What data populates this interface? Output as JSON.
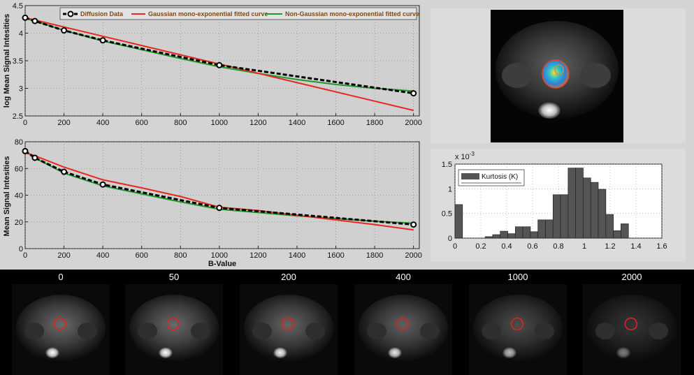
{
  "chart_data": [
    {
      "type": "line",
      "title": "",
      "xlabel": "",
      "ylabel": "log Mean Signal Intesities",
      "xlim": [
        0,
        2030
      ],
      "ylim": [
        2.5,
        4.5
      ],
      "xticks": [
        0,
        200,
        400,
        600,
        800,
        1000,
        1200,
        1400,
        1600,
        1800,
        2000
      ],
      "yticks": [
        2.5,
        3,
        3.5,
        4,
        4.5
      ],
      "grid": "dotted",
      "legend_position": "top",
      "series": [
        {
          "name": "Diffusion Data",
          "color": "#000000",
          "x": [
            0,
            50,
            200,
            400,
            1000,
            2000
          ],
          "y": [
            4.28,
            4.22,
            4.05,
            3.87,
            3.42,
            2.91
          ]
        },
        {
          "name": "Gaussian mono-exponential fitted curve",
          "color": "#e8281e",
          "x": [
            0,
            2000
          ],
          "y": [
            4.28,
            2.6
          ]
        },
        {
          "name": "Non-Gaussian mono-exponential fitted curve",
          "color": "#1e9a28",
          "x": [
            0,
            50,
            200,
            400,
            600,
            800,
            1000,
            1200,
            1400,
            1600,
            1800,
            2000
          ],
          "y": [
            4.27,
            4.22,
            4.05,
            3.86,
            3.7,
            3.54,
            3.39,
            3.27,
            3.16,
            3.07,
            3.0,
            2.95
          ]
        }
      ]
    },
    {
      "type": "line",
      "title": "",
      "xlabel": "B-Value",
      "ylabel": "Mean Signal Intesities",
      "xlim": [
        0,
        2030
      ],
      "ylim": [
        0,
        80
      ],
      "xticks": [
        0,
        200,
        400,
        600,
        800,
        1000,
        1200,
        1400,
        1600,
        1800,
        2000
      ],
      "yticks": [
        0,
        20,
        40,
        60,
        80
      ],
      "grid": "dotted",
      "series": [
        {
          "name": "Diffusion Data",
          "color": "#000000",
          "x": [
            0,
            50,
            200,
            400,
            1000,
            2000
          ],
          "y": [
            73,
            68,
            57.5,
            48,
            30.5,
            18
          ]
        },
        {
          "name": "Gaussian mono-exponential fitted curve",
          "color": "#e8281e",
          "x": [
            0,
            50,
            200,
            400,
            600,
            800,
            1000,
            1200,
            1400,
            1600,
            1800,
            2000
          ],
          "y": [
            72,
            69.5,
            61,
            51.5,
            45.5,
            39,
            31,
            28.5,
            25,
            21.5,
            18,
            14
          ]
        },
        {
          "name": "Non-Gaussian mono-exponential fitted curve",
          "color": "#1e9a28",
          "x": [
            0,
            50,
            200,
            400,
            600,
            800,
            1000,
            1200,
            1400,
            1600,
            1800,
            2000
          ],
          "y": [
            73,
            68,
            56.5,
            47,
            41,
            35,
            29.5,
            27,
            24.5,
            22.5,
            20.5,
            19
          ]
        }
      ]
    },
    {
      "type": "bar",
      "title": "",
      "xlabel": "",
      "ylabel": "",
      "exponent_label": "x 10",
      "exponent_power": "-3",
      "xlim": [
        0,
        1.6
      ],
      "ylim": [
        0,
        1.5
      ],
      "xticks": [
        "0",
        "0.2",
        "0.4",
        "0.6",
        "0.8",
        "1",
        "1.2",
        "1.4",
        "1.6"
      ],
      "yticks": [
        "0",
        "0.5",
        "1",
        "1.5"
      ],
      "grid": "dotted",
      "legend_position": "top-left",
      "bar_color": "#555555",
      "series": [
        {
          "name": "Kurtosis (K)",
          "bin_edges": [
            0,
            0.0583,
            0.1167,
            0.175,
            0.2333,
            0.2917,
            0.35,
            0.4083,
            0.4667,
            0.525,
            0.5833,
            0.6417,
            0.7,
            0.7583,
            0.8167,
            0.875,
            0.9333,
            0.9917,
            1.05,
            1.1083,
            1.1667,
            1.225,
            1.2833,
            1.3417,
            1.4,
            1.4583,
            1.5167
          ],
          "values": [
            0.68,
            0,
            0,
            0,
            0.03,
            0.07,
            0.14,
            0.09,
            0.23,
            0.23,
            0.13,
            0.37,
            0.37,
            0.88,
            0.88,
            1.42,
            1.42,
            1.22,
            1.13,
            0.99,
            0.48,
            0.15,
            0.29,
            0,
            0,
            0
          ]
        }
      ]
    }
  ],
  "mri_strip": {
    "labels": [
      "0",
      "50",
      "200",
      "400",
      "1000",
      "2000"
    ]
  },
  "colors": {
    "background": "#d4d4d4",
    "plot_bg": "#ffffff",
    "roi_outline": "#e02020"
  }
}
